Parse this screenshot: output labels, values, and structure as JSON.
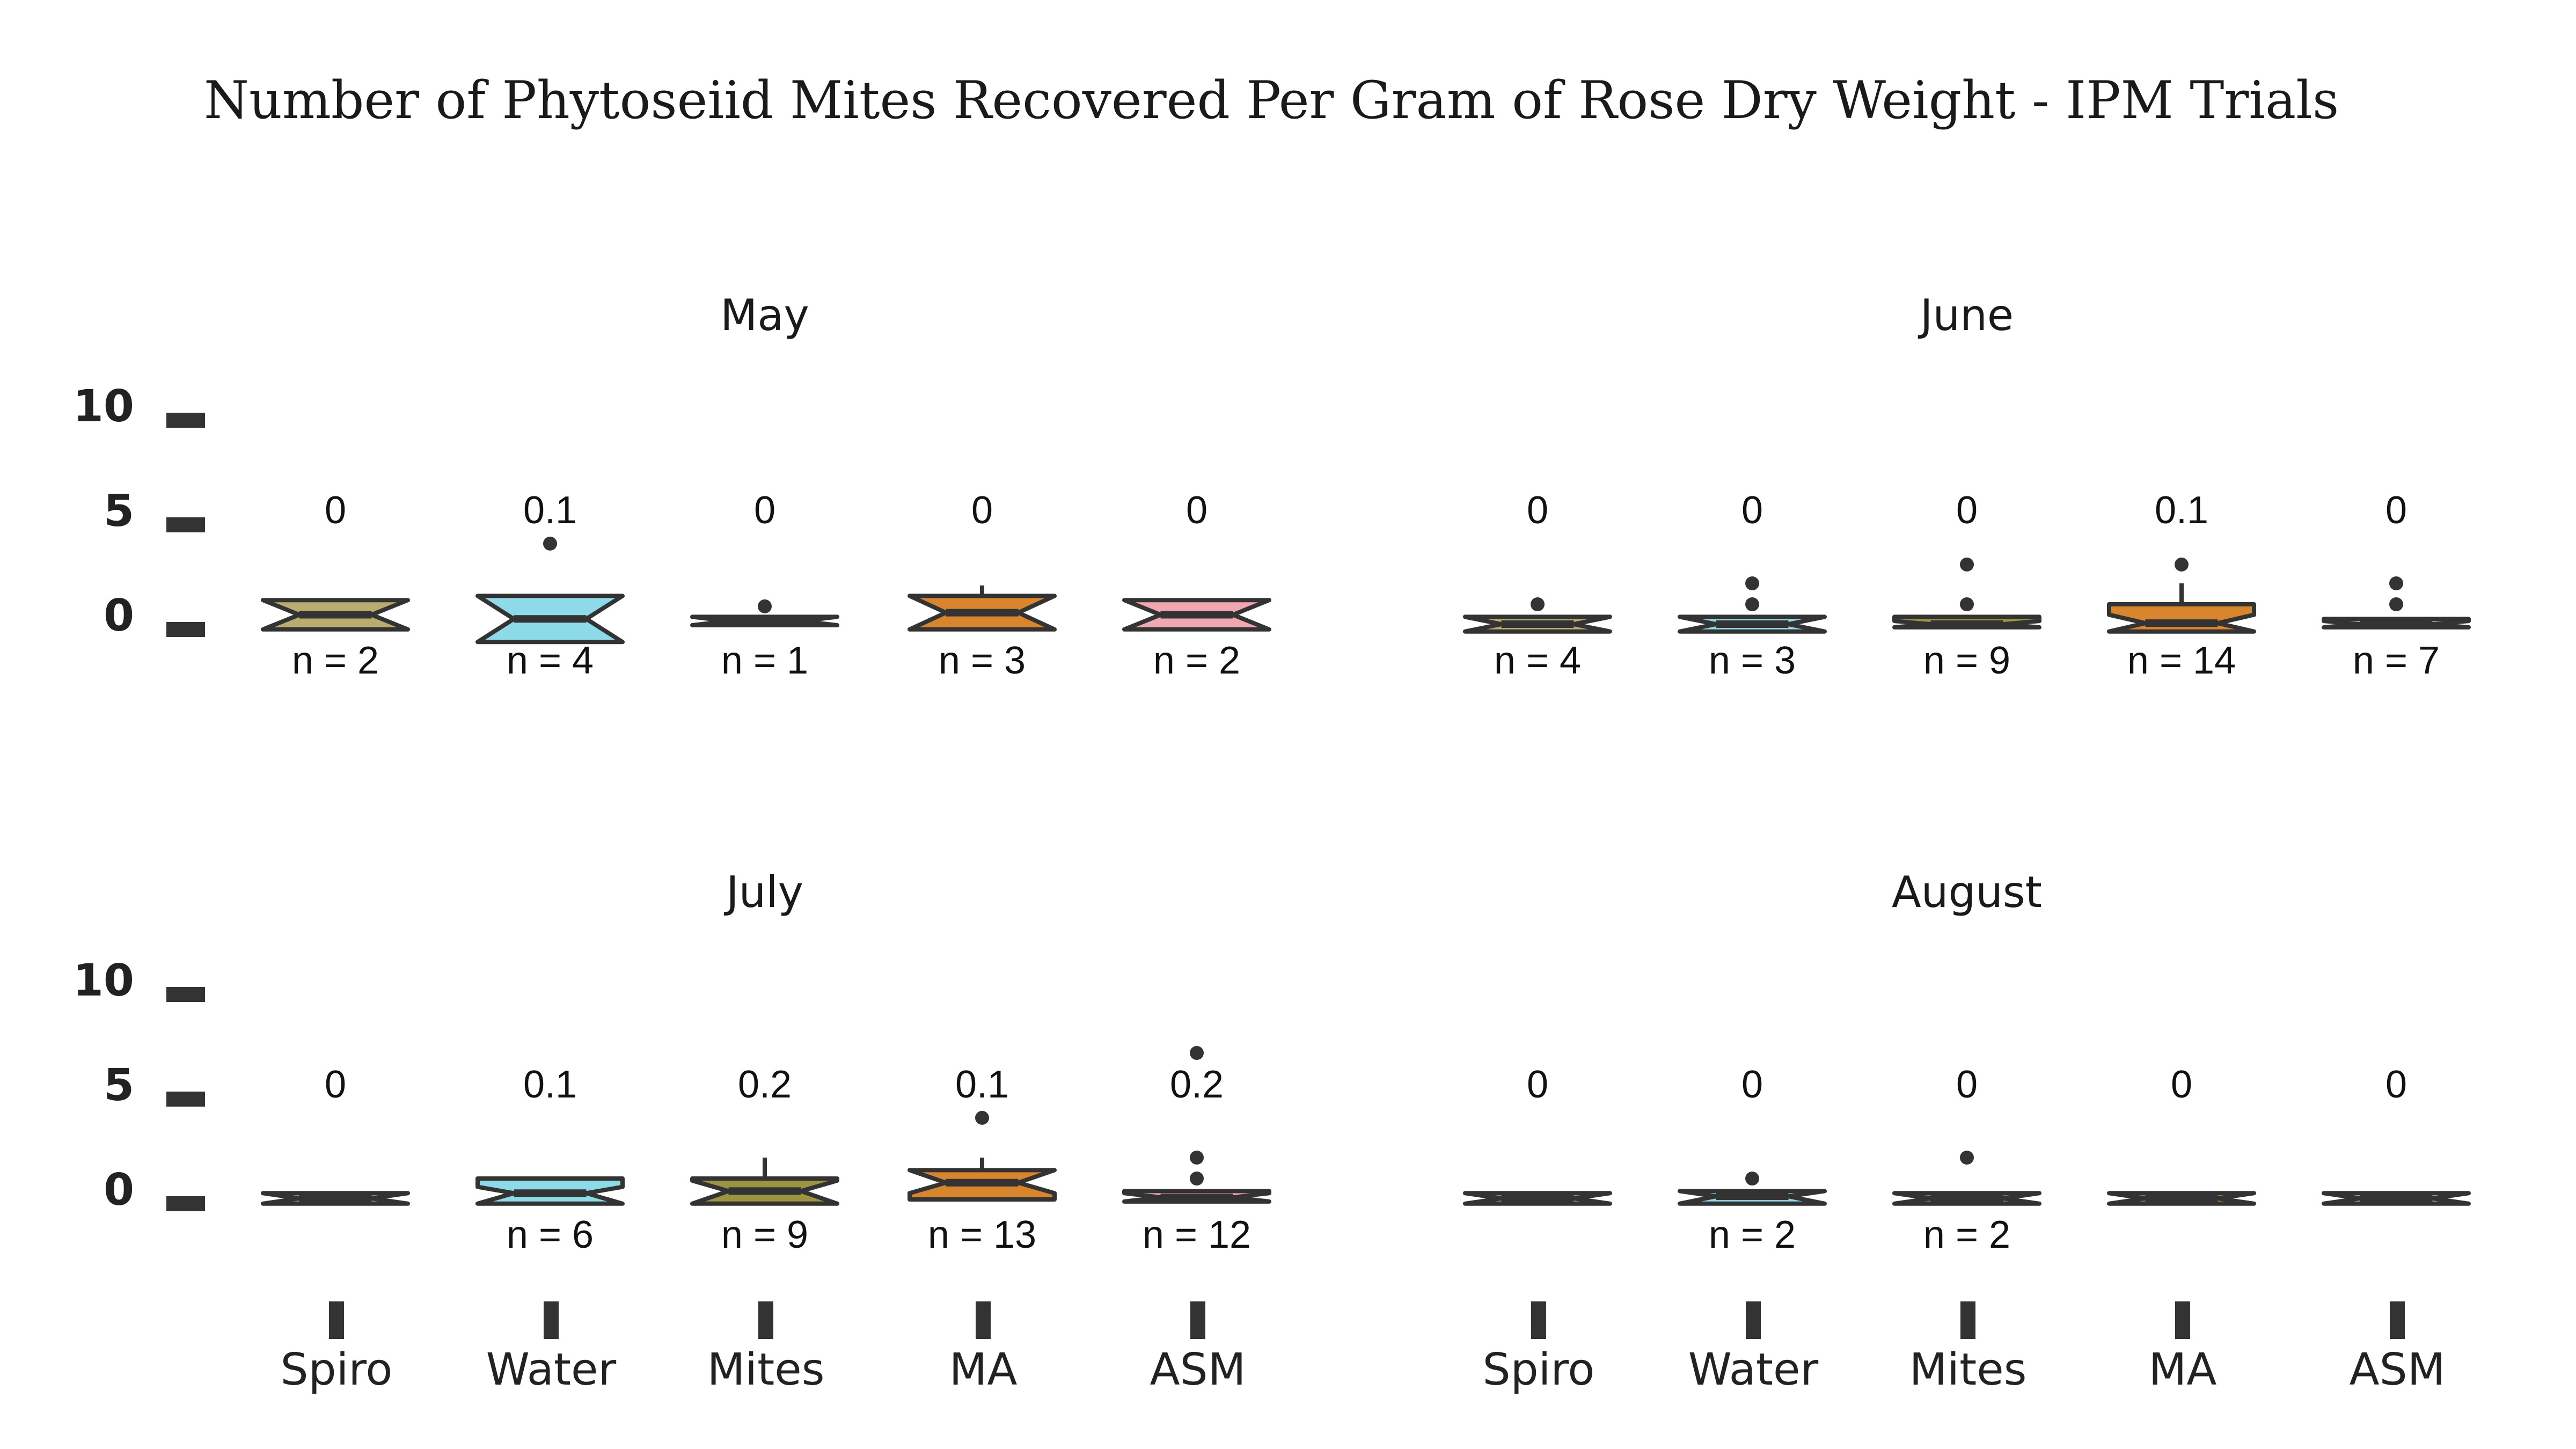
{
  "colors": {
    "Spiro": "#b8ad6e",
    "Water": "#8ddbe8",
    "Mites": "#9b9440",
    "MA": "#d9852d",
    "ASM": "#f1a7b1",
    "stroke": "#333333"
  },
  "chart_data": {
    "type": "box",
    "title": "Number of Phytoseiid Mites Recovered Per Gram of Rose Dry Weight - IPM Trials",
    "categories": [
      "Spiro",
      "Water",
      "Mites",
      "MA",
      "ASM"
    ],
    "ylim": [
      0,
      10
    ],
    "yticks": [
      "0",
      "5",
      "10"
    ],
    "grid": false,
    "panels": [
      {
        "title": "May",
        "boxes": [
          {
            "category": "Spiro",
            "mean_label": "0",
            "n_label": "n = 2",
            "q1": 0.1,
            "median": 0.5,
            "q3": 1.0,
            "lower": 0.1,
            "upper": 1.0,
            "notch": [
              -0.2,
              1.2
            ],
            "outliers": []
          },
          {
            "category": "Water",
            "mean_label": "0.1",
            "n_label": "n = 4",
            "q1": 0.0,
            "median": 0.3,
            "q3": 1.0,
            "lower": 0.0,
            "upper": 1.0,
            "notch": [
              -0.8,
              1.4
            ],
            "outliers": [
              3.9
            ]
          },
          {
            "category": "Mites",
            "mean_label": "0",
            "n_label": "n = 1",
            "q1": 0.0,
            "median": 0.2,
            "q3": 0.4,
            "lower": 0.0,
            "upper": 0.4,
            "notch": [
              0.0,
              0.4
            ],
            "outliers": [
              0.9
            ]
          },
          {
            "category": "MA",
            "mean_label": "0",
            "n_label": "n = 3",
            "q1": 0.0,
            "median": 0.6,
            "q3": 1.3,
            "lower": 0.0,
            "upper": 1.9,
            "notch": [
              -0.2,
              1.4
            ],
            "outliers": []
          },
          {
            "category": "ASM",
            "mean_label": "0",
            "n_label": "n = 2",
            "q1": 0.1,
            "median": 0.5,
            "q3": 1.0,
            "lower": 0.1,
            "upper": 1.0,
            "notch": [
              -0.2,
              1.2
            ],
            "outliers": []
          }
        ]
      },
      {
        "title": "June",
        "boxes": [
          {
            "category": "Spiro",
            "mean_label": "0",
            "n_label": "n = 4",
            "q1": 0.0,
            "median": 0.05,
            "q3": 0.15,
            "lower": 0.0,
            "upper": 0.15,
            "notch": [
              -0.3,
              0.4
            ],
            "outliers": [
              1.0
            ]
          },
          {
            "category": "Water",
            "mean_label": "0",
            "n_label": "n = 3",
            "q1": 0.0,
            "median": 0.05,
            "q3": 0.15,
            "lower": 0.0,
            "upper": 0.15,
            "notch": [
              -0.3,
              0.4
            ],
            "outliers": [
              1.0,
              2.0
            ]
          },
          {
            "category": "Mites",
            "mean_label": "0",
            "n_label": "n = 9",
            "q1": 0.0,
            "median": 0.05,
            "q3": 0.4,
            "lower": 0.0,
            "upper": 0.4,
            "notch": [
              -0.1,
              0.2
            ],
            "outliers": [
              1.0,
              2.9
            ]
          },
          {
            "category": "MA",
            "mean_label": "0.1",
            "n_label": "n = 14",
            "q1": 0.0,
            "median": 0.1,
            "q3": 1.0,
            "lower": 0.0,
            "upper": 2.0,
            "notch": [
              -0.3,
              0.5
            ],
            "outliers": [
              2.9
            ]
          },
          {
            "category": "Ma_placeholder_unused",
            "mean_label": "",
            "n_label": "",
            "q1": 0,
            "median": 0,
            "q3": 0,
            "lower": 0,
            "upper": 0,
            "notch": [
              0,
              0
            ],
            "outliers": [],
            "skip": true
          },
          {
            "category": "ASM",
            "mean_label": "0",
            "n_label": "n = 7",
            "q1": 0.0,
            "median": 0.05,
            "q3": 0.3,
            "lower": 0.0,
            "upper": 0.3,
            "notch": [
              -0.1,
              0.2
            ],
            "outliers": [
              1.0,
              2.0
            ]
          }
        ]
      },
      {
        "title": "July",
        "boxes": [
          {
            "category": "Spiro",
            "mean_label": "0",
            "n_label": "",
            "q1": 0.0,
            "median": 0.05,
            "q3": 0.1,
            "lower": 0.0,
            "upper": 0.1,
            "notch": [
              -0.2,
              0.3
            ],
            "outliers": []
          },
          {
            "category": "Water",
            "mean_label": "0.1",
            "n_label": "n = 6",
            "q1": 0.0,
            "median": 0.3,
            "q3": 1.0,
            "lower": 0.0,
            "upper": 1.0,
            "notch": [
              -0.2,
              0.6
            ],
            "outliers": []
          },
          {
            "category": "Mites",
            "mean_label": "0.2",
            "n_label": "n = 9",
            "q1": 0.0,
            "median": 0.4,
            "q3": 1.0,
            "lower": 0.0,
            "upper": 2.0,
            "notch": [
              -0.2,
              0.9
            ],
            "outliers": []
          },
          {
            "category": "MA",
            "mean_label": "0.1",
            "n_label": "n = 13",
            "q1": 0.0,
            "median": 0.8,
            "q3": 1.3,
            "lower": 0.0,
            "upper": 2.0,
            "notch": [
              0.3,
              1.4
            ],
            "outliers": [
              3.9
            ]
          },
          {
            "category": "ASM",
            "mean_label": "0.2",
            "n_label": "n = 12",
            "q1": 0.0,
            "median": 0.1,
            "q3": 0.4,
            "lower": 0.0,
            "upper": 0.4,
            "notch": [
              -0.1,
              0.3
            ],
            "outliers": [
              1.0,
              2.0,
              7.0
            ]
          }
        ]
      },
      {
        "title": "August",
        "boxes": [
          {
            "category": "Spiro",
            "mean_label": "0",
            "n_label": "",
            "q1": 0.0,
            "median": 0.05,
            "q3": 0.1,
            "lower": 0.0,
            "upper": 0.1,
            "notch": [
              -0.2,
              0.3
            ],
            "outliers": []
          },
          {
            "category": "Water",
            "mean_label": "0",
            "n_label": "n = 2",
            "q1": 0.0,
            "median": 0.15,
            "q3": 0.3,
            "lower": 0.0,
            "upper": 0.3,
            "notch": [
              -0.2,
              0.4
            ],
            "outliers": [
              1.0
            ]
          },
          {
            "category": "Mites",
            "mean_label": "0",
            "n_label": "n = 2",
            "q1": 0.0,
            "median": 0.05,
            "q3": 0.1,
            "lower": 0.0,
            "upper": 0.1,
            "notch": [
              -0.2,
              0.3
            ],
            "outliers": [
              2.0
            ]
          },
          {
            "category": "MA",
            "mean_label": "0",
            "n_label": "",
            "q1": 0.0,
            "median": 0.05,
            "q3": 0.1,
            "lower": 0.0,
            "upper": 0.1,
            "notch": [
              -0.2,
              0.3
            ],
            "outliers": []
          },
          {
            "category": "ASM",
            "mean_label": "0",
            "n_label": "",
            "q1": 0.0,
            "median": 0.05,
            "q3": 0.1,
            "lower": 0.0,
            "upper": 0.1,
            "notch": [
              -0.2,
              0.3
            ],
            "outliers": []
          }
        ]
      }
    ]
  }
}
